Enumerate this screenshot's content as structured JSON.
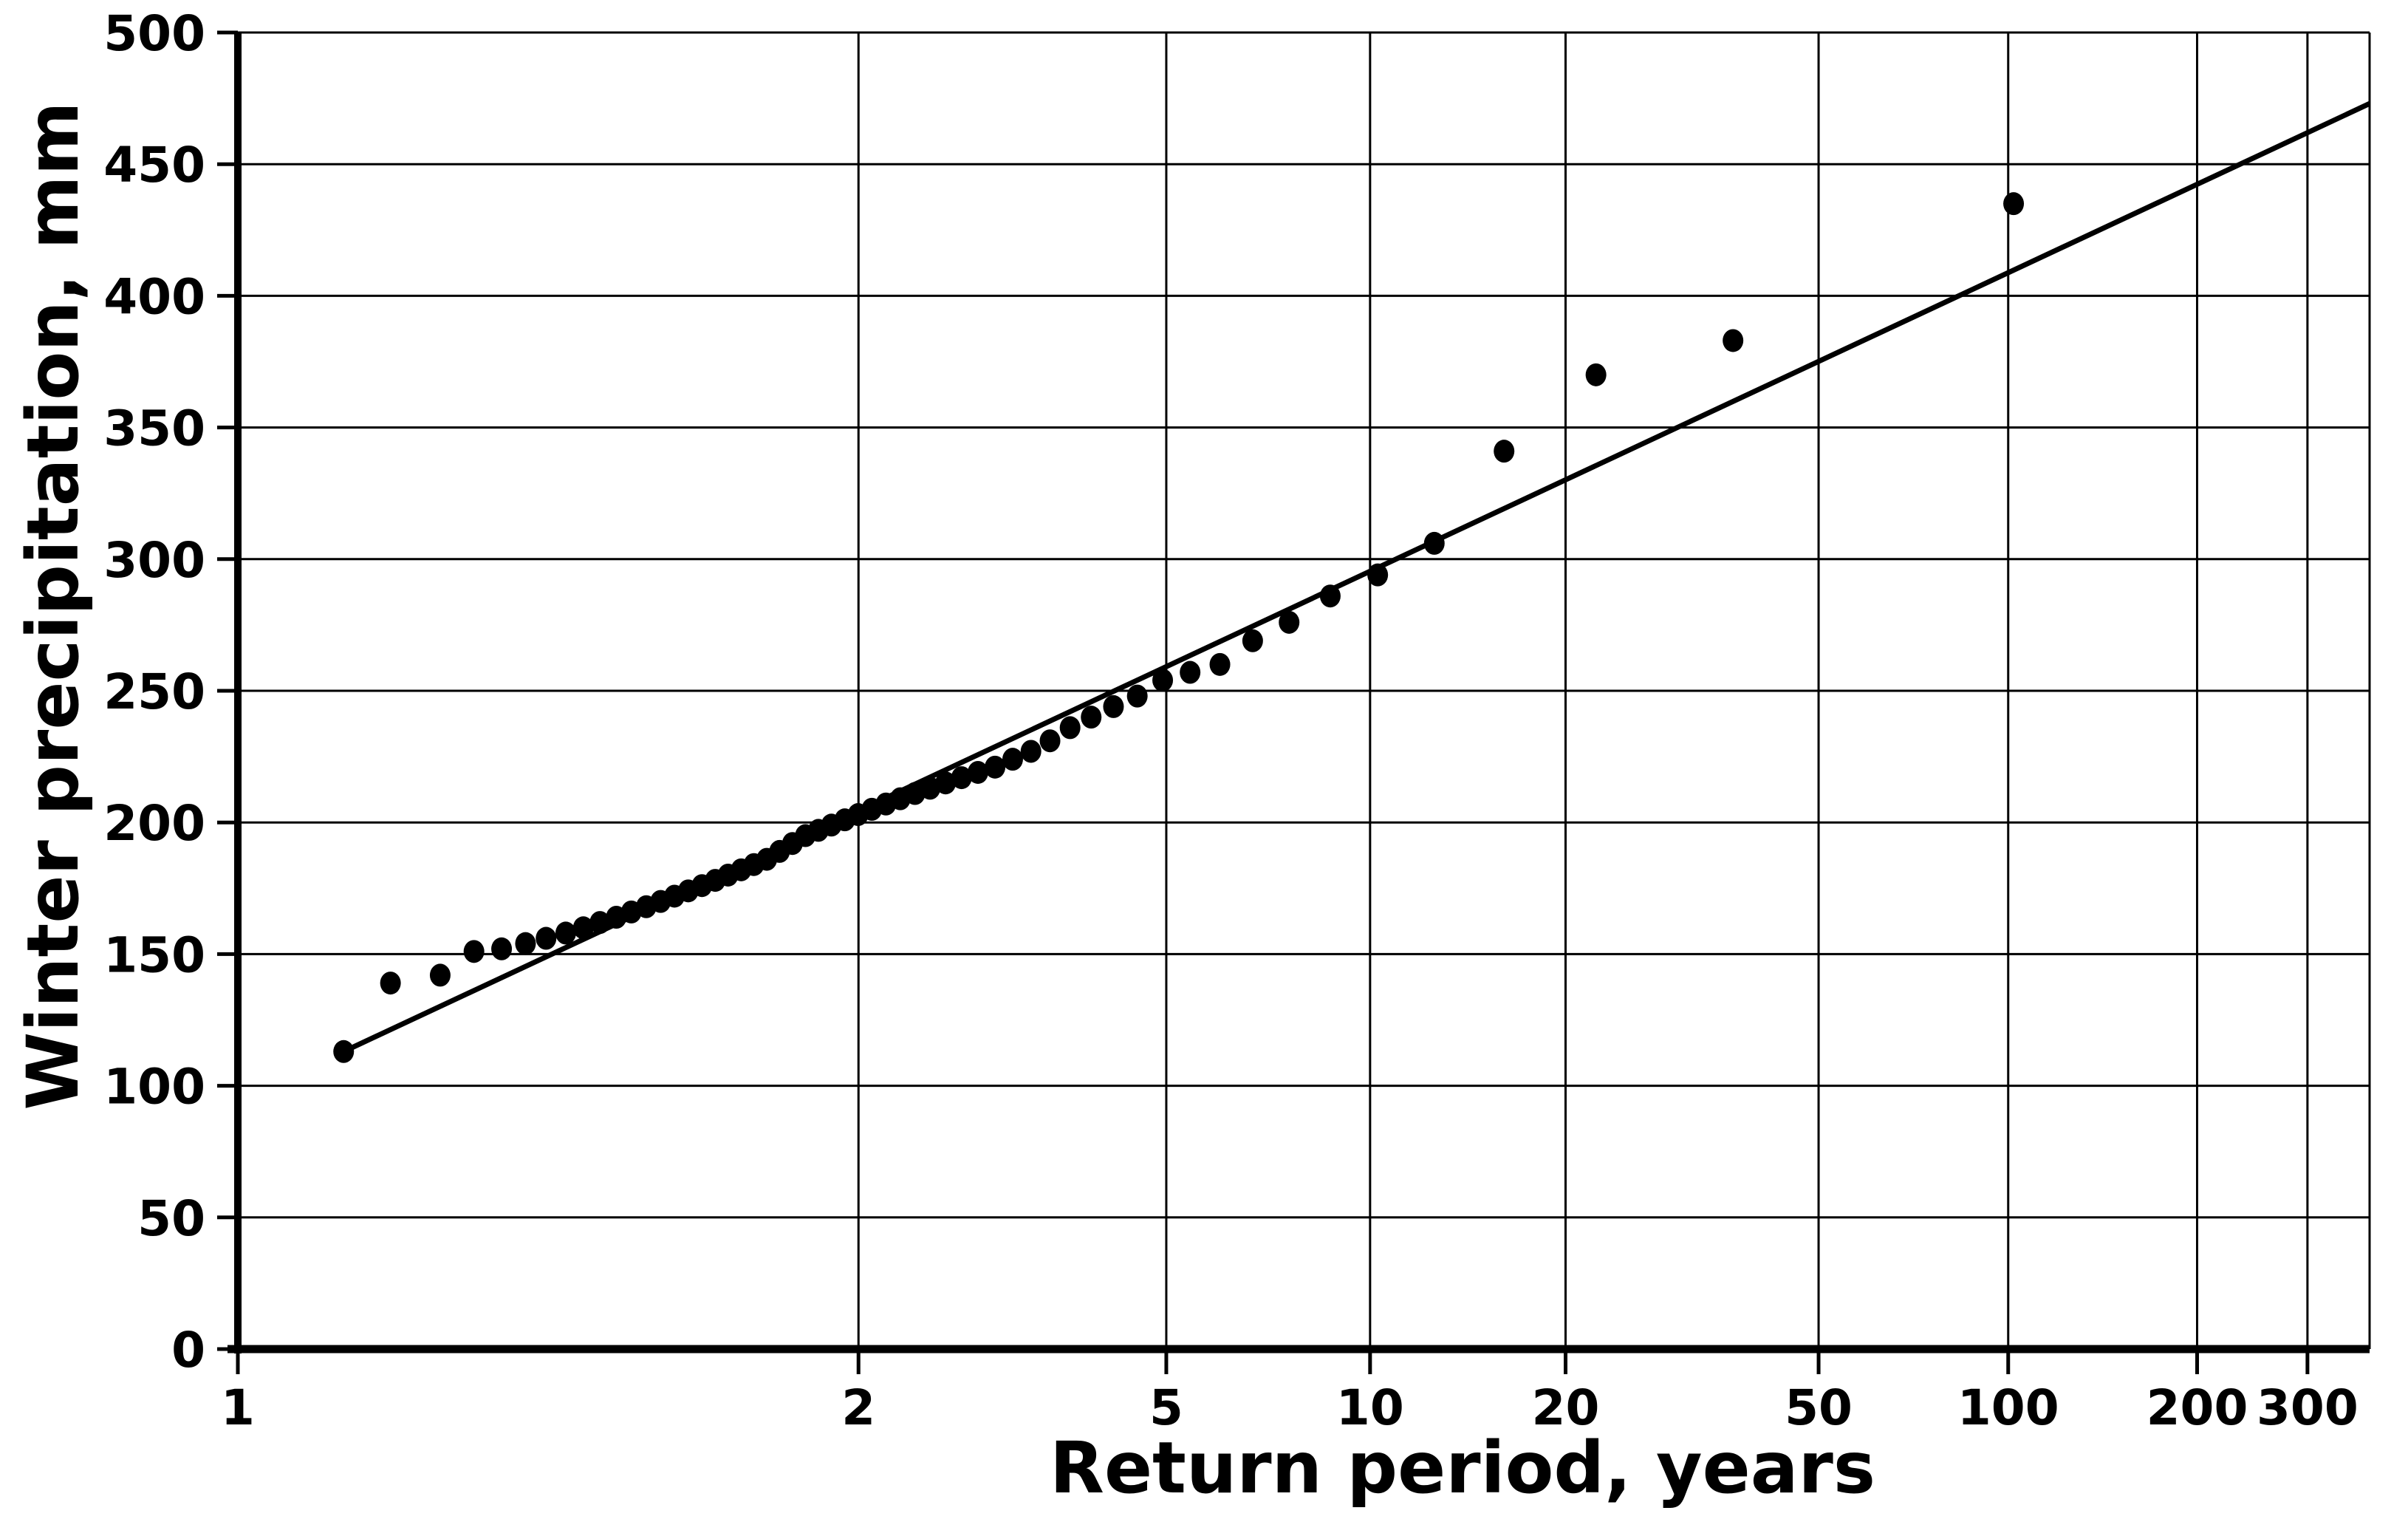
{
  "chart_data": {
    "type": "scatter",
    "title": "",
    "xlabel": "Return period, years",
    "ylabel": "Winter precipitation, mm",
    "x_scale": "gumbel-return-period",
    "x_range": [
      1.0011,
      377
    ],
    "ylim": [
      0,
      500
    ],
    "x_ticks": [
      1,
      2,
      5,
      10,
      20,
      50,
      100,
      200,
      300
    ],
    "x_tick_labels": [
      "1",
      "2",
      "5",
      "10",
      "20",
      "50",
      "100",
      "200",
      "300"
    ],
    "y_ticks": [
      0,
      50,
      100,
      150,
      200,
      250,
      300,
      350,
      400,
      450,
      500
    ],
    "y_tick_labels": [
      "0",
      "50",
      "100",
      "150",
      "200",
      "250",
      "300",
      "350",
      "400",
      "450",
      "500"
    ],
    "grid": true,
    "legend": "none",
    "ink_color": "#000000",
    "background_color": "#ffffff",
    "points": [
      {
        "T": 1.01,
        "P": 113
      },
      {
        "T": 1.021,
        "P": 139
      },
      {
        "T": 1.041,
        "P": 142
      },
      {
        "T": 1.061,
        "P": 151
      },
      {
        "T": 1.082,
        "P": 152
      },
      {
        "T": 1.104,
        "P": 154
      },
      {
        "T": 1.126,
        "P": 156
      },
      {
        "T": 1.15,
        "P": 158
      },
      {
        "T": 1.174,
        "P": 160
      },
      {
        "T": 1.199,
        "P": 162
      },
      {
        "T": 1.226,
        "P": 164
      },
      {
        "T": 1.253,
        "P": 166
      },
      {
        "T": 1.282,
        "P": 168
      },
      {
        "T": 1.312,
        "P": 170
      },
      {
        "T": 1.343,
        "P": 172
      },
      {
        "T": 1.376,
        "P": 174
      },
      {
        "T": 1.411,
        "P": 176
      },
      {
        "T": 1.447,
        "P": 178
      },
      {
        "T": 1.484,
        "P": 180
      },
      {
        "T": 1.524,
        "P": 182
      },
      {
        "T": 1.565,
        "P": 184
      },
      {
        "T": 1.609,
        "P": 186
      },
      {
        "T": 1.655,
        "P": 189
      },
      {
        "T": 1.704,
        "P": 192
      },
      {
        "T": 1.756,
        "P": 195
      },
      {
        "T": 1.811,
        "P": 197
      },
      {
        "T": 1.869,
        "P": 199
      },
      {
        "T": 1.932,
        "P": 201
      },
      {
        "T": 1.998,
        "P": 203
      },
      {
        "T": 2.07,
        "P": 205
      },
      {
        "T": 2.148,
        "P": 207
      },
      {
        "T": 2.232,
        "P": 209
      },
      {
        "T": 2.323,
        "P": 211
      },
      {
        "T": 2.422,
        "P": 213
      },
      {
        "T": 2.53,
        "P": 215
      },
      {
        "T": 2.648,
        "P": 217
      },
      {
        "T": 2.777,
        "P": 219
      },
      {
        "T": 2.92,
        "P": 221
      },
      {
        "T": 3.078,
        "P": 224
      },
      {
        "T": 3.253,
        "P": 227
      },
      {
        "T": 3.449,
        "P": 231
      },
      {
        "T": 3.671,
        "P": 236
      },
      {
        "T": 3.923,
        "P": 240
      },
      {
        "T": 4.212,
        "P": 244
      },
      {
        "T": 4.548,
        "P": 248
      },
      {
        "T": 4.941,
        "P": 254
      },
      {
        "T": 5.409,
        "P": 257
      },
      {
        "T": 5.975,
        "P": 260
      },
      {
        "T": 6.673,
        "P": 269
      },
      {
        "T": 7.556,
        "P": 276
      },
      {
        "T": 8.707,
        "P": 286
      },
      {
        "T": 10.27,
        "P": 294
      },
      {
        "T": 12.53,
        "P": 306
      },
      {
        "T": 16.05,
        "P": 341
      },
      {
        "T": 22.31,
        "P": 370
      },
      {
        "T": 36.62,
        "P": 383
      },
      {
        "T": 102.0,
        "P": 435
      }
    ],
    "fit_line": [
      {
        "T": 1.01,
        "P": 113
      },
      {
        "T": 377.0,
        "P": 473
      }
    ]
  }
}
